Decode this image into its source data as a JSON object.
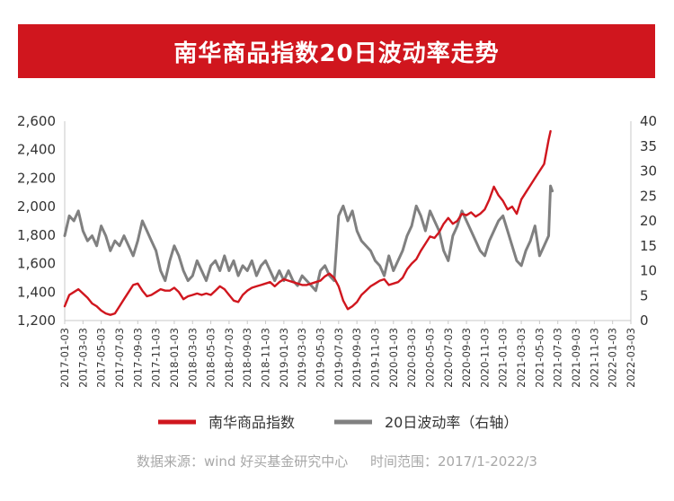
{
  "chart_data": {
    "type": "line",
    "title": "南华商品指数20日波动率走势",
    "x_tick_labels": [
      "2017-01-03",
      "2017-03-03",
      "2017-05-03",
      "2017-07-03",
      "2017-09-03",
      "2017-11-03",
      "2018-01-03",
      "2018-03-03",
      "2018-05-03",
      "2018-07-03",
      "2018-09-03",
      "2018-11-03",
      "2019-01-03",
      "2019-03-03",
      "2019-05-03",
      "2019-07-03",
      "2019-09-03",
      "2019-11-03",
      "2020-01-03",
      "2020-03-03",
      "2020-05-03",
      "2020-07-03",
      "2020-09-03",
      "2020-11-03",
      "2021-01-03",
      "2021-03-03",
      "2021-05-03",
      "2021-07-03",
      "2021-09-03",
      "2021-11-03",
      "2022-01-03",
      "2022-03-03"
    ],
    "y_left": {
      "min": 1200,
      "max": 2600,
      "ticks": [
        "1,200",
        "1,400",
        "1,600",
        "1,800",
        "2,000",
        "2,200",
        "2,400",
        "2,600"
      ]
    },
    "y_right": {
      "min": 0,
      "max": 40,
      "ticks": [
        "0",
        "5",
        "10",
        "15",
        "20",
        "25",
        "30",
        "35",
        "40"
      ]
    },
    "series": [
      {
        "name": "南华商品指数",
        "axis": "left",
        "color": "#d0161e",
        "points": [
          [
            0,
            1300
          ],
          [
            0.25,
            1380
          ],
          [
            0.5,
            1400
          ],
          [
            0.75,
            1420
          ],
          [
            1,
            1390
          ],
          [
            1.25,
            1360
          ],
          [
            1.5,
            1320
          ],
          [
            1.75,
            1300
          ],
          [
            2,
            1270
          ],
          [
            2.25,
            1250
          ],
          [
            2.5,
            1240
          ],
          [
            2.75,
            1250
          ],
          [
            3,
            1300
          ],
          [
            3.25,
            1350
          ],
          [
            3.5,
            1400
          ],
          [
            3.75,
            1450
          ],
          [
            4,
            1460
          ],
          [
            4.25,
            1410
          ],
          [
            4.5,
            1370
          ],
          [
            4.75,
            1380
          ],
          [
            5,
            1400
          ],
          [
            5.25,
            1420
          ],
          [
            5.5,
            1410
          ],
          [
            5.75,
            1410
          ],
          [
            6,
            1430
          ],
          [
            6.25,
            1400
          ],
          [
            6.5,
            1350
          ],
          [
            6.75,
            1370
          ],
          [
            7,
            1380
          ],
          [
            7.25,
            1390
          ],
          [
            7.5,
            1380
          ],
          [
            7.75,
            1390
          ],
          [
            8,
            1380
          ],
          [
            8.25,
            1410
          ],
          [
            8.5,
            1440
          ],
          [
            8.75,
            1420
          ],
          [
            9,
            1380
          ],
          [
            9.25,
            1340
          ],
          [
            9.5,
            1330
          ],
          [
            9.75,
            1380
          ],
          [
            10,
            1410
          ],
          [
            10.25,
            1430
          ],
          [
            10.5,
            1440
          ],
          [
            10.75,
            1450
          ],
          [
            11,
            1460
          ],
          [
            11.25,
            1470
          ],
          [
            11.5,
            1440
          ],
          [
            11.75,
            1470
          ],
          [
            12,
            1490
          ],
          [
            12.25,
            1480
          ],
          [
            12.5,
            1470
          ],
          [
            12.75,
            1460
          ],
          [
            13,
            1450
          ],
          [
            13.25,
            1450
          ],
          [
            13.5,
            1460
          ],
          [
            13.75,
            1470
          ],
          [
            14,
            1480
          ],
          [
            14.25,
            1510
          ],
          [
            14.5,
            1530
          ],
          [
            14.75,
            1500
          ],
          [
            15,
            1440
          ],
          [
            15.25,
            1340
          ],
          [
            15.5,
            1280
          ],
          [
            15.75,
            1300
          ],
          [
            16,
            1330
          ],
          [
            16.25,
            1380
          ],
          [
            16.5,
            1410
          ],
          [
            16.75,
            1440
          ],
          [
            17,
            1460
          ],
          [
            17.25,
            1480
          ],
          [
            17.5,
            1490
          ],
          [
            17.75,
            1450
          ],
          [
            18,
            1460
          ],
          [
            18.25,
            1470
          ],
          [
            18.5,
            1500
          ],
          [
            18.75,
            1560
          ],
          [
            19,
            1600
          ],
          [
            19.25,
            1630
          ],
          [
            19.5,
            1690
          ],
          [
            19.75,
            1740
          ],
          [
            20,
            1790
          ],
          [
            20.25,
            1780
          ],
          [
            20.5,
            1820
          ],
          [
            20.75,
            1880
          ],
          [
            21,
            1920
          ],
          [
            21.25,
            1880
          ],
          [
            21.5,
            1900
          ],
          [
            21.75,
            1950
          ],
          [
            22,
            1940
          ],
          [
            22.25,
            1960
          ],
          [
            22.5,
            1930
          ],
          [
            22.75,
            1950
          ],
          [
            23,
            1980
          ],
          [
            23.25,
            2050
          ],
          [
            23.5,
            2140
          ],
          [
            23.75,
            2080
          ],
          [
            24,
            2040
          ],
          [
            24.25,
            1980
          ],
          [
            24.5,
            2000
          ],
          [
            24.75,
            1950
          ],
          [
            25,
            2050
          ],
          [
            25.25,
            2100
          ],
          [
            25.5,
            2150
          ],
          [
            25.75,
            2200
          ],
          [
            26,
            2250
          ],
          [
            26.25,
            2300
          ],
          [
            26.5,
            2470
          ],
          [
            26.6,
            2530
          ]
        ]
      },
      {
        "name": "20日波动率（右轴）",
        "axis": "right",
        "color": "#808080",
        "points": [
          [
            0,
            17
          ],
          [
            0.25,
            21
          ],
          [
            0.5,
            20
          ],
          [
            0.75,
            22
          ],
          [
            1,
            18
          ],
          [
            1.25,
            16
          ],
          [
            1.5,
            17
          ],
          [
            1.75,
            15
          ],
          [
            2,
            19
          ],
          [
            2.25,
            17
          ],
          [
            2.5,
            14
          ],
          [
            2.75,
            16
          ],
          [
            3,
            15
          ],
          [
            3.25,
            17
          ],
          [
            3.5,
            15
          ],
          [
            3.75,
            13
          ],
          [
            4,
            16
          ],
          [
            4.25,
            20
          ],
          [
            4.5,
            18
          ],
          [
            4.75,
            16
          ],
          [
            5,
            14
          ],
          [
            5.25,
            10
          ],
          [
            5.5,
            8
          ],
          [
            5.75,
            12
          ],
          [
            6,
            15
          ],
          [
            6.25,
            13
          ],
          [
            6.5,
            10
          ],
          [
            6.75,
            8
          ],
          [
            7,
            9
          ],
          [
            7.25,
            12
          ],
          [
            7.5,
            10
          ],
          [
            7.75,
            8
          ],
          [
            8,
            11
          ],
          [
            8.25,
            12
          ],
          [
            8.5,
            10
          ],
          [
            8.75,
            13
          ],
          [
            9,
            10
          ],
          [
            9.25,
            12
          ],
          [
            9.5,
            9
          ],
          [
            9.75,
            11
          ],
          [
            10,
            10
          ],
          [
            10.25,
            12
          ],
          [
            10.5,
            9
          ],
          [
            10.75,
            11
          ],
          [
            11,
            12
          ],
          [
            11.25,
            10
          ],
          [
            11.5,
            8
          ],
          [
            11.75,
            10
          ],
          [
            12,
            8
          ],
          [
            12.25,
            10
          ],
          [
            12.5,
            8
          ],
          [
            12.75,
            7
          ],
          [
            13,
            9
          ],
          [
            13.25,
            8
          ],
          [
            13.5,
            7
          ],
          [
            13.75,
            6
          ],
          [
            14,
            10
          ],
          [
            14.25,
            11
          ],
          [
            14.5,
            9
          ],
          [
            14.75,
            8
          ],
          [
            15,
            21
          ],
          [
            15.25,
            23
          ],
          [
            15.5,
            20
          ],
          [
            15.75,
            22
          ],
          [
            16,
            18
          ],
          [
            16.25,
            16
          ],
          [
            16.5,
            15
          ],
          [
            16.75,
            14
          ],
          [
            17,
            12
          ],
          [
            17.25,
            11
          ],
          [
            17.5,
            9
          ],
          [
            17.75,
            13
          ],
          [
            18,
            10
          ],
          [
            18.25,
            12
          ],
          [
            18.5,
            14
          ],
          [
            18.75,
            17
          ],
          [
            19,
            19
          ],
          [
            19.25,
            23
          ],
          [
            19.5,
            21
          ],
          [
            19.75,
            18
          ],
          [
            20,
            22
          ],
          [
            20.25,
            20
          ],
          [
            20.5,
            18
          ],
          [
            20.75,
            14
          ],
          [
            21,
            12
          ],
          [
            21.25,
            17
          ],
          [
            21.5,
            19
          ],
          [
            21.75,
            22
          ],
          [
            22,
            20
          ],
          [
            22.25,
            18
          ],
          [
            22.5,
            16
          ],
          [
            22.75,
            14
          ],
          [
            23,
            13
          ],
          [
            23.25,
            16
          ],
          [
            23.5,
            18
          ],
          [
            23.75,
            20
          ],
          [
            24,
            21
          ],
          [
            24.25,
            18
          ],
          [
            24.5,
            15
          ],
          [
            24.75,
            12
          ],
          [
            25,
            11
          ],
          [
            25.25,
            14
          ],
          [
            25.5,
            16
          ],
          [
            25.75,
            19
          ],
          [
            26,
            13
          ],
          [
            26.25,
            15
          ],
          [
            26.5,
            17
          ],
          [
            26.6,
            27
          ],
          [
            26.7,
            26
          ]
        ]
      }
    ],
    "grid": false,
    "legend_position": "bottom"
  },
  "footer": {
    "source": "数据来源：wind 好买基金研究中心",
    "range": "时间范围：2017/1-2022/3"
  }
}
